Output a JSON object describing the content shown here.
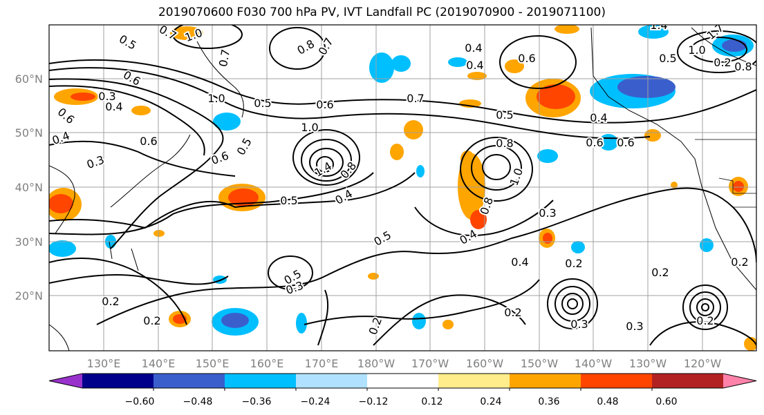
{
  "title": "2019070600 F030 700 hPa PV, IVT Landfall PC (2019070900 - 2019071100)",
  "lat_labels": [
    "60°N",
    "50°N",
    "40°N",
    "30°N",
    "20°N"
  ],
  "lon_labels": [
    "130°E",
    "140°E",
    "150°E",
    "160°E",
    "170°E",
    "180°W",
    "170°W",
    "160°W",
    "150°W",
    "140°W",
    "130°W",
    "120°W"
  ],
  "colorbar": {
    "ticks": [
      "−0.60",
      "−0.48",
      "−0.36",
      "−0.24",
      "−0.12",
      "0.12",
      "0.24",
      "0.36",
      "0.48",
      "0.60"
    ],
    "colors": [
      "#9932cc",
      "#00008b",
      "#3a5fcd",
      "#00bfff",
      "#b0e2ff",
      "#ffffff",
      "#ffec8b",
      "#ffa500",
      "#ff4500",
      "#b22222",
      "#ff82ab"
    ]
  },
  "contour_labels": [
    {
      "text": "0.5"
    },
    {
      "text": "0.7"
    },
    {
      "text": "1.0"
    },
    {
      "text": "0.6"
    },
    {
      "text": "0.3"
    },
    {
      "text": "0.4"
    },
    {
      "text": "0.6"
    },
    {
      "text": "0.4"
    },
    {
      "text": "0.3"
    },
    {
      "text": "0.6"
    },
    {
      "text": "1.0"
    },
    {
      "text": "0.5"
    },
    {
      "text": "0.8"
    },
    {
      "text": "0.7"
    },
    {
      "text": "0.7"
    },
    {
      "text": "0.5"
    },
    {
      "text": "0.6"
    },
    {
      "text": "1.0"
    },
    {
      "text": "1.4"
    },
    {
      "text": "0.8"
    },
    {
      "text": "0.5"
    },
    {
      "text": "0.4"
    },
    {
      "text": "0.6"
    },
    {
      "text": "0.5"
    },
    {
      "text": "0.8"
    },
    {
      "text": "1.0"
    },
    {
      "text": "0.8"
    },
    {
      "text": "0.7"
    },
    {
      "text": "0.4"
    },
    {
      "text": "0.5"
    },
    {
      "text": "0.3"
    },
    {
      "text": "0.4"
    },
    {
      "text": "0.2"
    },
    {
      "text": "0.2"
    },
    {
      "text": "0.6"
    },
    {
      "text": "0.8"
    },
    {
      "text": "0.6"
    },
    {
      "text": "0.4"
    },
    {
      "text": "0.6"
    },
    {
      "text": "0.4"
    },
    {
      "text": "0.2"
    },
    {
      "text": "0.2"
    },
    {
      "text": "0.2"
    },
    {
      "text": "0.2"
    },
    {
      "text": "0.5"
    },
    {
      "text": "0.3"
    },
    {
      "text": "0.3"
    },
    {
      "text": "0.2"
    },
    {
      "text": "0.3"
    },
    {
      "text": "0.2"
    },
    {
      "text": "0.2"
    },
    {
      "text": "1.4"
    },
    {
      "text": "1.7"
    },
    {
      "text": "1.0"
    },
    {
      "text": "0.5"
    },
    {
      "text": "0.4"
    }
  ]
}
